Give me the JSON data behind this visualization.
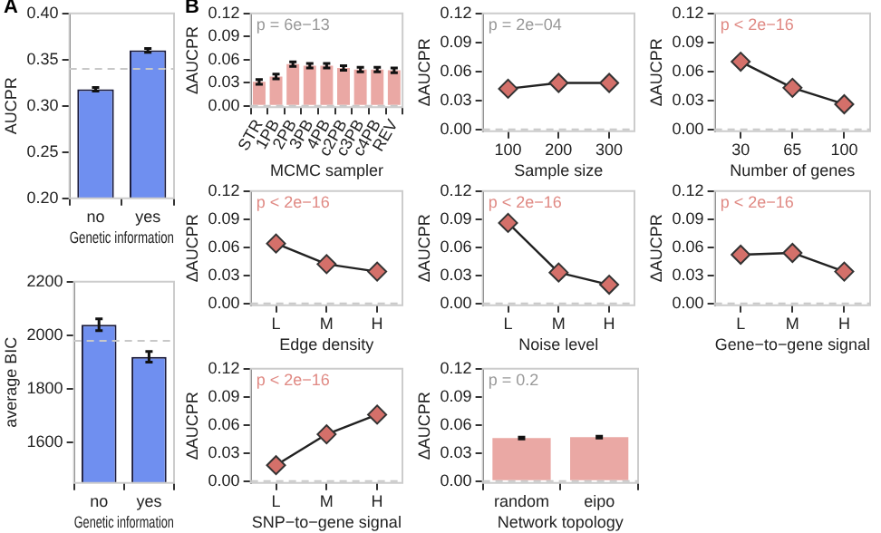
{
  "chart_data": [
    {
      "type": "bar",
      "title": "A",
      "categories": [
        "no",
        "yes"
      ],
      "values": [
        0.318,
        0.36
      ],
      "errors": [
        0.002,
        0.002
      ],
      "color": "#6f8ff0",
      "xlabel": "Genetic information",
      "ylabel": "AUCPR",
      "ylim": [
        0.2,
        0.4
      ],
      "yticks": [
        {
          "value": 0.2,
          "label": "0.20"
        },
        {
          "value": 0.25,
          "label": "0.25"
        },
        {
          "value": 0.3,
          "label": "0.30"
        },
        {
          "value": 0.35,
          "label": "0.35"
        },
        {
          "value": 0.4,
          "label": "0.40"
        }
      ],
      "ref_lines": [
        {
          "axis": "y",
          "value": 0.34,
          "color": "#c8c8c8",
          "line_style": "dashed"
        }
      ],
      "grid": false,
      "legend": false
    },
    {
      "type": "bar",
      "categories": [
        "no",
        "yes"
      ],
      "values": [
        2040,
        1920
      ],
      "errors": [
        22,
        20
      ],
      "color": "#6f8ff0",
      "xlabel": "Genetic information",
      "ylabel": "average BIC",
      "ylim": [
        1450,
        2200
      ],
      "yticks": [
        1600,
        1800,
        2000,
        2200
      ],
      "ref_lines": [
        {
          "axis": "y",
          "value": 1980,
          "color": "#c8c8c8",
          "line_style": "dashed"
        }
      ],
      "grid": false,
      "legend": false
    },
    {
      "type": "bar",
      "title": "B",
      "categories": [
        "STR",
        "1PB",
        "2PB",
        "3PB",
        "4PB",
        "c2PB",
        "c3PB",
        "c4PB",
        "REV"
      ],
      "values": [
        0.031,
        0.038,
        0.054,
        0.052,
        0.052,
        0.049,
        0.047,
        0.047,
        0.046
      ],
      "errors": [
        0.003,
        0.003,
        0.003,
        0.003,
        0.003,
        0.003,
        0.003,
        0.003,
        0.003
      ],
      "color": "#eaa8a4",
      "xlabel": "MCMC sampler",
      "ylabel": "ΔAUCPR",
      "ylim": [
        -0.002,
        0.12
      ],
      "yticks": [
        {
          "value": 0,
          "label": "0.00"
        },
        0.03,
        0.06,
        0.09,
        0.12
      ],
      "annotations": [
        "p = 6e−13"
      ],
      "ref_lines": [
        {
          "axis": "y",
          "value": 0,
          "color": "#c8c8c8",
          "line_style": "dashed"
        }
      ],
      "grid": false,
      "legend": false
    },
    {
      "type": "line",
      "categories": [
        "100",
        "200",
        "300"
      ],
      "values": [
        0.042,
        0.048,
        0.048
      ],
      "color": "#d4706a",
      "marker": "diamond",
      "xlabel": "Sample size",
      "ylabel": "ΔAUCPR",
      "ylim": [
        -0.002,
        0.12
      ],
      "yticks": [
        {
          "value": 0,
          "label": "0.00"
        },
        0.03,
        0.06,
        0.09,
        0.12
      ],
      "annotations": [
        "p = 2e−04"
      ],
      "ref_lines": [
        {
          "axis": "y",
          "value": 0,
          "color": "#c8c8c8",
          "line_style": "dashed"
        }
      ],
      "grid": false,
      "legend": false
    },
    {
      "type": "line",
      "categories": [
        "30",
        "65",
        "100"
      ],
      "values": [
        0.07,
        0.043,
        0.026
      ],
      "color": "#d4706a",
      "marker": "diamond",
      "xlabel": "Number of genes",
      "ylabel": "ΔAUCPR",
      "ylim": [
        -0.002,
        0.12
      ],
      "yticks": [
        {
          "value": 0,
          "label": "0.00"
        },
        0.03,
        0.06,
        0.09,
        0.12
      ],
      "annotations": [
        "p < 2e−16"
      ],
      "ref_lines": [
        {
          "axis": "y",
          "value": 0,
          "color": "#c8c8c8",
          "line_style": "dashed"
        }
      ],
      "grid": false,
      "legend": false
    },
    {
      "type": "line",
      "categories": [
        "L",
        "M",
        "H"
      ],
      "values": [
        0.064,
        0.042,
        0.034
      ],
      "color": "#d4706a",
      "marker": "diamond",
      "xlabel": "Edge density",
      "ylabel": "ΔAUCPR",
      "ylim": [
        -0.002,
        0.12
      ],
      "yticks": [
        {
          "value": 0,
          "label": "0.00"
        },
        0.03,
        0.06,
        0.09,
        0.12
      ],
      "annotations": [
        "p < 2e−16"
      ],
      "ref_lines": [
        {
          "axis": "y",
          "value": 0,
          "color": "#c8c8c8",
          "line_style": "dashed"
        }
      ],
      "grid": false,
      "legend": false
    },
    {
      "type": "line",
      "categories": [
        "L",
        "M",
        "H"
      ],
      "values": [
        0.086,
        0.033,
        0.02
      ],
      "color": "#d4706a",
      "marker": "diamond",
      "xlabel": "Noise level",
      "ylabel": "ΔAUCPR",
      "ylim": [
        -0.002,
        0.12
      ],
      "yticks": [
        {
          "value": 0,
          "label": "0.00"
        },
        0.03,
        0.06,
        0.09,
        0.12
      ],
      "annotations": [
        "p < 2e−16"
      ],
      "ref_lines": [
        {
          "axis": "y",
          "value": 0,
          "color": "#c8c8c8",
          "line_style": "dashed"
        }
      ],
      "grid": false,
      "legend": false
    },
    {
      "type": "line",
      "categories": [
        "L",
        "M",
        "H"
      ],
      "values": [
        0.052,
        0.054,
        0.034
      ],
      "color": "#d4706a",
      "marker": "diamond",
      "xlabel": "Gene−to−gene signal",
      "ylabel": "ΔAUCPR",
      "ylim": [
        -0.002,
        0.12
      ],
      "yticks": [
        {
          "value": 0,
          "label": "0.00"
        },
        0.03,
        0.06,
        0.09,
        0.12
      ],
      "annotations": [
        "p < 2e−16"
      ],
      "ref_lines": [
        {
          "axis": "y",
          "value": 0,
          "color": "#c8c8c8",
          "line_style": "dashed"
        }
      ],
      "grid": false,
      "legend": false
    },
    {
      "type": "line",
      "categories": [
        "L",
        "M",
        "H"
      ],
      "values": [
        0.017,
        0.05,
        0.071
      ],
      "color": "#d4706a",
      "marker": "diamond",
      "xlabel": "SNP−to−gene signal",
      "ylabel": "ΔAUCPR",
      "ylim": [
        -0.002,
        0.12
      ],
      "yticks": [
        {
          "value": 0,
          "label": "0.00"
        },
        0.03,
        0.06,
        0.09,
        0.12
      ],
      "annotations": [
        "p < 2e−16"
      ],
      "ref_lines": [
        {
          "axis": "y",
          "value": 0,
          "color": "#c8c8c8",
          "line_style": "dashed"
        }
      ],
      "grid": false,
      "legend": false
    },
    {
      "type": "bar",
      "categories": [
        "random",
        "eipo"
      ],
      "values": [
        0.046,
        0.047
      ],
      "errors": [
        0.001,
        0.001
      ],
      "color": "#eaa8a4",
      "xlabel": "Network topology",
      "ylabel": "ΔAUCPR",
      "ylim": [
        -0.002,
        0.12
      ],
      "yticks": [
        {
          "value": 0,
          "label": "0.00"
        },
        0.03,
        0.06,
        0.09,
        0.12
      ],
      "annotations": [
        "p = 0.2"
      ],
      "ref_lines": [
        {
          "axis": "y",
          "value": 0,
          "color": "#c8c8c8",
          "line_style": "dashed"
        }
      ],
      "grid": false,
      "legend": false
    }
  ]
}
